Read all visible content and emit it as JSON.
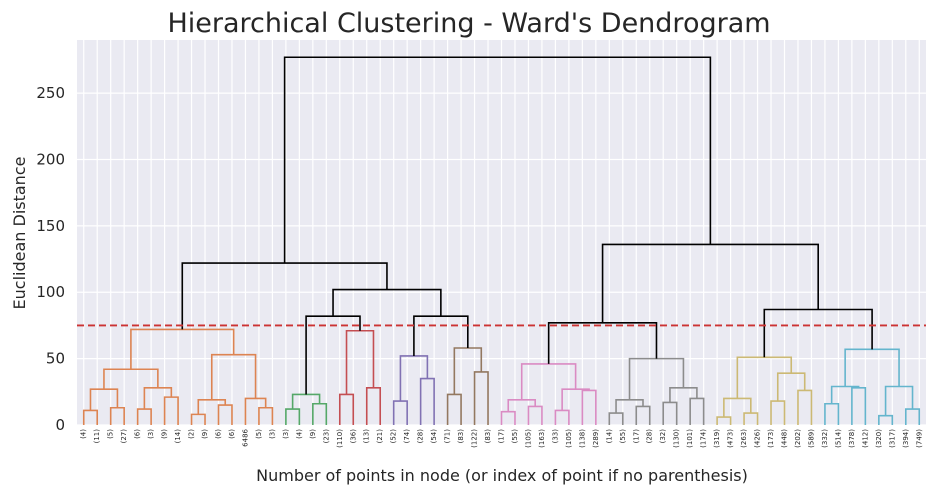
{
  "chart_data": {
    "type": "dendrogram",
    "title": "Hierarchical Clustering - Ward's Dendrogram",
    "xlabel": "Number of points in node (or index of point if no parenthesis)",
    "ylabel": "Euclidean Distance",
    "ylim": [
      0,
      290
    ],
    "yticks": [
      0,
      50,
      100,
      150,
      200,
      250
    ],
    "grid": true,
    "background": "#eaeaf2",
    "grid_color": "#ffffff",
    "threshold": {
      "value": 75,
      "color": "#cc3333",
      "style": "dashed"
    },
    "leaf_labels": [
      "(4)",
      "(11)",
      "(5)",
      "(27)",
      "(6)",
      "(3)",
      "(9)",
      "(14)",
      "(2)",
      "(9)",
      "(6)",
      "(6)",
      "6486",
      "(5)",
      "(3)",
      "(3)",
      "(4)",
      "(9)",
      "(23)",
      "(110)",
      "(36)",
      "(13)",
      "(21)",
      "(52)",
      "(74)",
      "(28)",
      "(54)",
      "(71)",
      "(83)",
      "(122)",
      "(83)",
      "(17)",
      "(55)",
      "(105)",
      "(163)",
      "(33)",
      "(105)",
      "(138)",
      "(289)",
      "(14)",
      "(55)",
      "(17)",
      "(28)",
      "(32)",
      "(130)",
      "(101)",
      "(174)",
      "(319)",
      "(473)",
      "(263)",
      "(426)",
      "(173)",
      "(448)",
      "(202)",
      "(589)",
      "(332)",
      "(514)",
      "(378)",
      "(412)",
      "(320)",
      "(317)",
      "(394)",
      "(749)"
    ],
    "links": [
      {
        "a": 0,
        "b": 1,
        "h": 11,
        "color": "#dd8452"
      },
      {
        "a": 2,
        "b": 3,
        "h": 13,
        "color": "#dd8452"
      },
      {
        "a": "L0",
        "b": "L1",
        "h": 27,
        "color": "#dd8452"
      },
      {
        "a": 4,
        "b": 5,
        "h": 12,
        "color": "#dd8452"
      },
      {
        "a": 6,
        "b": 7,
        "h": 21,
        "color": "#dd8452"
      },
      {
        "a": "L3",
        "b": "L4",
        "h": 28,
        "color": "#dd8452"
      },
      {
        "a": "L2",
        "b": "L5",
        "h": 42,
        "color": "#dd8452"
      },
      {
        "a": 8,
        "b": 9,
        "h": 8,
        "color": "#dd8452"
      },
      {
        "a": 10,
        "b": 11,
        "h": 15,
        "color": "#dd8452"
      },
      {
        "a": "L7",
        "b": "L8",
        "h": 19,
        "color": "#dd8452"
      },
      {
        "a": 13,
        "b": 14,
        "h": 13,
        "color": "#dd8452"
      },
      {
        "a": 12,
        "b": "L10",
        "h": 20,
        "color": "#dd8452"
      },
      {
        "a": "L9",
        "b": "L11",
        "h": 53,
        "color": "#dd8452"
      },
      {
        "a": "L6",
        "b": "L12",
        "h": 72,
        "color": "#dd8452"
      },
      {
        "a": 15,
        "b": 16,
        "h": 12,
        "color": "#55a868"
      },
      {
        "a": 17,
        "b": 18,
        "h": 16,
        "color": "#55a868"
      },
      {
        "a": "L14",
        "b": "L15",
        "h": 23,
        "color": "#55a868"
      },
      {
        "a": 19,
        "b": 20,
        "h": 23,
        "color": "#c44e52"
      },
      {
        "a": 21,
        "b": 22,
        "h": 28,
        "color": "#c44e52"
      },
      {
        "a": "L17",
        "b": "L18",
        "h": 71,
        "color": "#c44e52"
      },
      {
        "a": 23,
        "b": 24,
        "h": 18,
        "color": "#8172b3"
      },
      {
        "a": 25,
        "b": 26,
        "h": 35,
        "color": "#8172b3"
      },
      {
        "a": "L20",
        "b": "L21",
        "h": 52,
        "color": "#8172b3"
      },
      {
        "a": 27,
        "b": 28,
        "h": 23,
        "color": "#937860"
      },
      {
        "a": 29,
        "b": 30,
        "h": 40,
        "color": "#937860"
      },
      {
        "a": "L23",
        "b": "L24",
        "h": 58,
        "color": "#937860"
      },
      {
        "a": 31,
        "b": 32,
        "h": 10,
        "color": "#da8bc3"
      },
      {
        "a": 33,
        "b": 34,
        "h": 14,
        "color": "#da8bc3"
      },
      {
        "a": "L26",
        "b": "L27",
        "h": 19,
        "color": "#da8bc3"
      },
      {
        "a": 35,
        "b": 36,
        "h": 11,
        "color": "#da8bc3"
      },
      {
        "a": 37,
        "b": 38,
        "h": 26,
        "color": "#da8bc3"
      },
      {
        "a": "L29",
        "b": "L30",
        "h": 27,
        "color": "#da8bc3"
      },
      {
        "a": "L28",
        "b": "L31",
        "h": 46,
        "color": "#da8bc3"
      },
      {
        "a": 39,
        "b": 40,
        "h": 9,
        "color": "#8c8c8c"
      },
      {
        "a": 41,
        "b": 42,
        "h": 14,
        "color": "#8c8c8c"
      },
      {
        "a": "L33",
        "b": "L34",
        "h": 19,
        "color": "#8c8c8c"
      },
      {
        "a": 43,
        "b": 44,
        "h": 17,
        "color": "#8c8c8c"
      },
      {
        "a": 45,
        "b": 46,
        "h": 20,
        "color": "#8c8c8c"
      },
      {
        "a": "L36",
        "b": "L37",
        "h": 28,
        "color": "#8c8c8c"
      },
      {
        "a": "L35",
        "b": "L38",
        "h": 50,
        "color": "#8c8c8c"
      },
      {
        "a": 47,
        "b": 48,
        "h": 6,
        "color": "#ccb974"
      },
      {
        "a": 49,
        "b": 50,
        "h": 9,
        "color": "#ccb974"
      },
      {
        "a": "L40",
        "b": "L41",
        "h": 20,
        "color": "#ccb974"
      },
      {
        "a": 51,
        "b": 52,
        "h": 18,
        "color": "#ccb974"
      },
      {
        "a": 53,
        "b": 54,
        "h": 26,
        "color": "#ccb974"
      },
      {
        "a": "L43",
        "b": "L44",
        "h": 39,
        "color": "#ccb974"
      },
      {
        "a": "L42",
        "b": "L45",
        "h": 51,
        "color": "#ccb974"
      },
      {
        "a": 55,
        "b": 56,
        "h": 16,
        "color": "#64b5cd"
      },
      {
        "a": 57,
        "b": 58,
        "h": 28,
        "color": "#64b5cd"
      },
      {
        "a": "L47",
        "b": "L48",
        "h": 29,
        "color": "#64b5cd"
      },
      {
        "a": 59,
        "b": 60,
        "h": 7,
        "color": "#64b5cd"
      },
      {
        "a": 61,
        "b": 62,
        "h": 12,
        "color": "#64b5cd"
      },
      {
        "a": "L50",
        "b": "L51",
        "h": 29,
        "color": "#64b5cd"
      },
      {
        "a": "L49",
        "b": "L52",
        "h": 57,
        "color": "#64b5cd"
      },
      {
        "a": "L16",
        "b": "L19",
        "h": 82,
        "color": "#000000"
      },
      {
        "a": "L22",
        "b": "L25",
        "h": 82,
        "color": "#000000"
      },
      {
        "a": "L54",
        "b": "L55",
        "h": 102,
        "color": "#000000"
      },
      {
        "a": "L13",
        "b": "L56",
        "h": 122,
        "color": "#000000"
      },
      {
        "a": "L32",
        "b": "L39",
        "h": 77,
        "color": "#000000"
      },
      {
        "a": "L46",
        "b": "L53",
        "h": 87,
        "color": "#000000"
      },
      {
        "a": "L58",
        "b": "L59",
        "h": 136,
        "color": "#000000"
      },
      {
        "a": "L57",
        "b": "L60",
        "h": 277,
        "color": "#000000"
      }
    ]
  }
}
